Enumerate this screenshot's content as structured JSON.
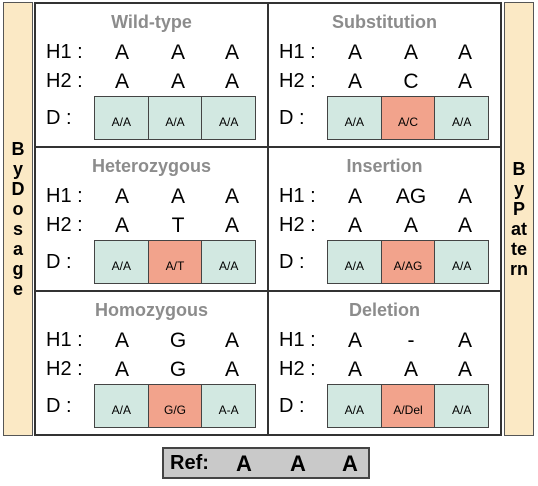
{
  "left_label": "By Dosage",
  "right_label": "By Pattern",
  "h1_label": "H1 :",
  "h2_label": "H2 :",
  "d_label": "D :",
  "panels": [
    {
      "title": "Wild-type",
      "h1": [
        "A",
        "A",
        "A"
      ],
      "h2": [
        "A",
        "A",
        "A"
      ],
      "d": [
        "A/A",
        "A/A",
        "A/A"
      ],
      "mut": -1
    },
    {
      "title": "Substitution",
      "h1": [
        "A",
        "A",
        "A"
      ],
      "h2": [
        "A",
        "C",
        "A"
      ],
      "d": [
        "A/A",
        "A/C",
        "A/A"
      ],
      "mut": 1
    },
    {
      "title": "Heterozygous",
      "h1": [
        "A",
        "A",
        "A"
      ],
      "h2": [
        "A",
        "T",
        "A"
      ],
      "d": [
        "A/A",
        "A/T",
        "A/A"
      ],
      "mut": 1
    },
    {
      "title": "Insertion",
      "h1": [
        "A",
        "AG",
        "A"
      ],
      "h2": [
        "A",
        "A",
        "A"
      ],
      "d": [
        "A/A",
        "A/AG",
        "A/A"
      ],
      "mut": 1
    },
    {
      "title": "Homozygous",
      "h1": [
        "A",
        "G",
        "A"
      ],
      "h2": [
        "A",
        "G",
        "A"
      ],
      "d": [
        "A/A",
        "G/G",
        "A-A"
      ],
      "mut": 1
    },
    {
      "title": "Deletion",
      "h1": [
        "A",
        "-",
        "A"
      ],
      "h2": [
        "A",
        "A",
        "A"
      ],
      "d": [
        "A/A",
        "A/Del",
        "A/A"
      ],
      "mut": 1
    }
  ],
  "ref": {
    "label": "Ref:",
    "bases": [
      "A",
      "A",
      "A"
    ]
  },
  "colors": {
    "normal": "#d2e8e1",
    "mutated": "#f2a38c",
    "sidebar": "#fbe9c5",
    "ref_bg": "#c9c9c9",
    "title": "#8c8c8c"
  }
}
